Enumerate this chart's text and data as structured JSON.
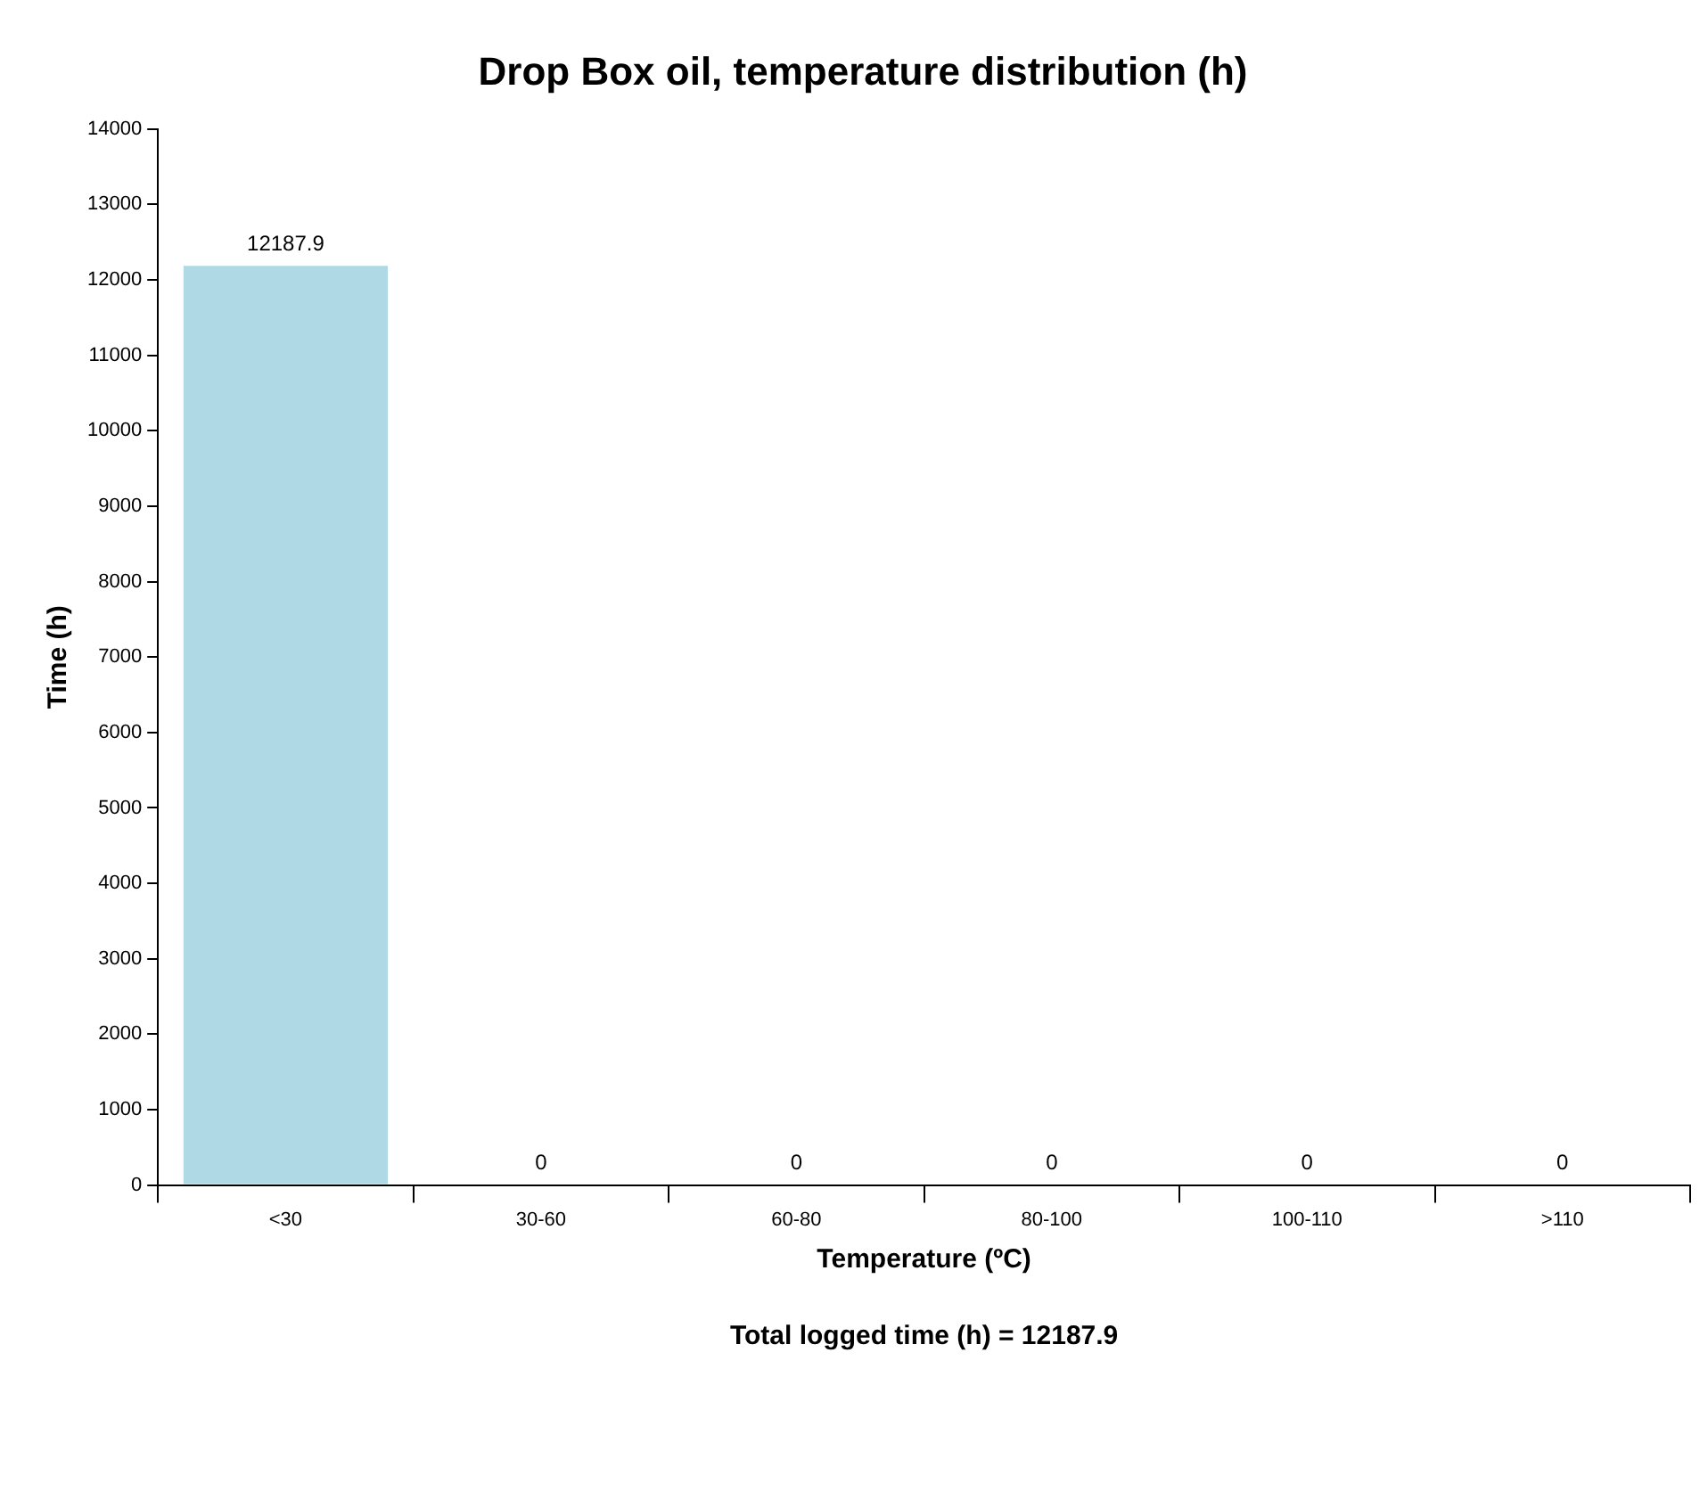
{
  "chart_data": {
    "type": "bar",
    "title": "Drop Box oil, temperature distribution (h)",
    "xlabel": "Temperature (ºC)",
    "ylabel": "Time (h)",
    "categories": [
      "<30",
      "30-60",
      "60-80",
      "80-100",
      "100-110",
      ">110"
    ],
    "values": [
      12187.9,
      0,
      0,
      0,
      0,
      0
    ],
    "color": "#b0d9e6",
    "ylim": [
      0,
      14000
    ],
    "yticks": [
      0,
      1000,
      2000,
      3000,
      4000,
      5000,
      6000,
      7000,
      8000,
      9000,
      10000,
      11000,
      12000,
      13000,
      14000
    ],
    "data_labels": true,
    "grid": false,
    "legend": false,
    "annotations": [
      "Total logged time (h) = 12187.9"
    ]
  }
}
